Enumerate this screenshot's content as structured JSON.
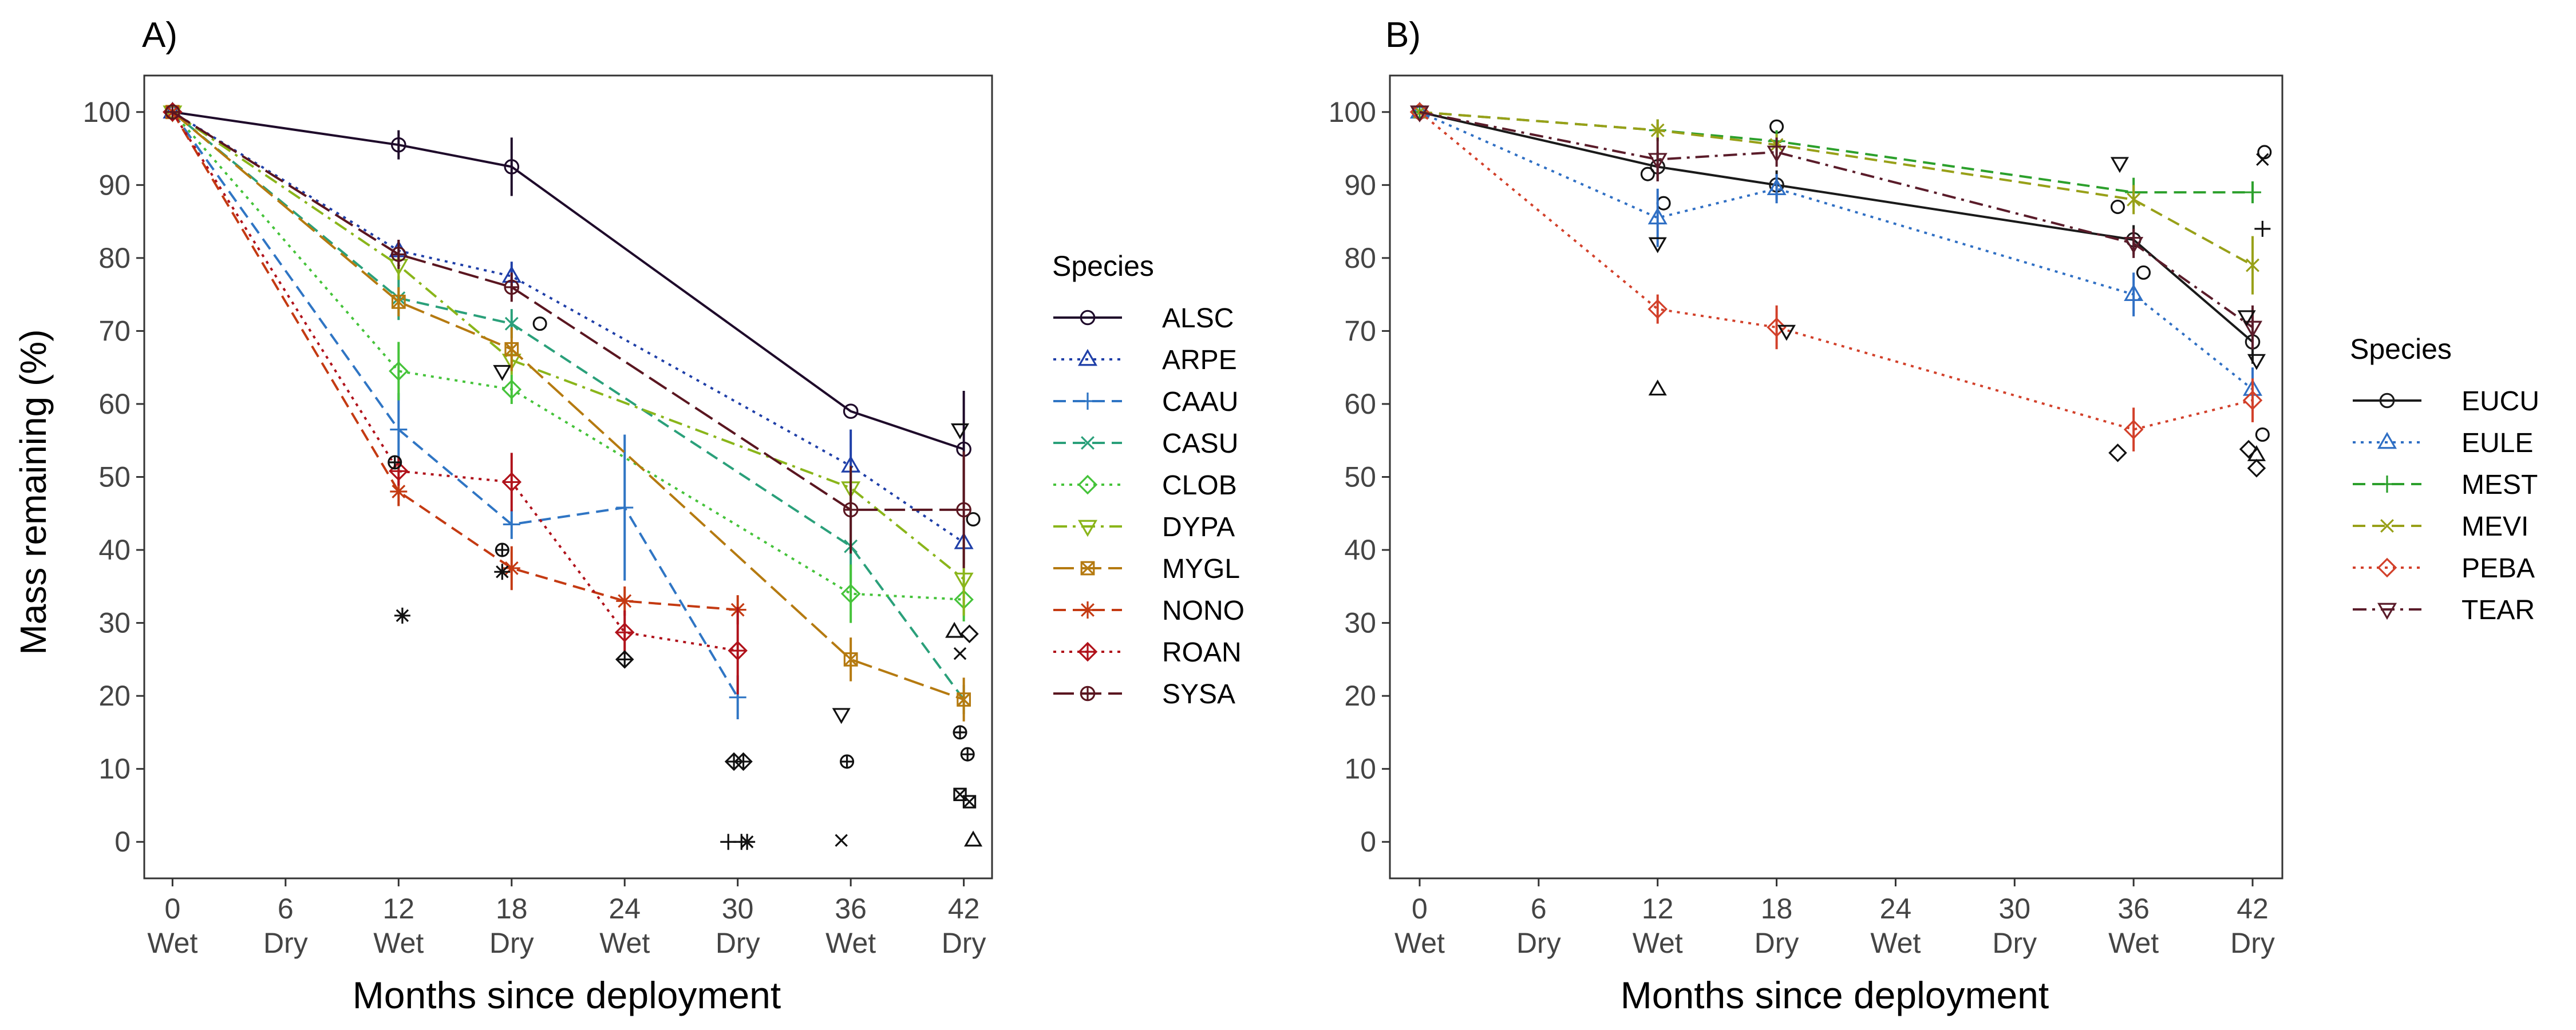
{
  "shared": {
    "ylabel": "Mass remaining (%)",
    "xlabel": "Months since deployment",
    "x_ticks": [
      0,
      6,
      12,
      18,
      24,
      30,
      36,
      42
    ],
    "x_season_labels": [
      "Wet",
      "Dry",
      "Wet",
      "Dry",
      "Wet",
      "Dry",
      "Wet",
      "Dry"
    ],
    "y_ticks": [
      0,
      10,
      20,
      30,
      40,
      50,
      60,
      70,
      80,
      90,
      100
    ],
    "legend_title": "Species"
  },
  "chart_data": [
    {
      "type": "line",
      "panel_label": "A)",
      "xlabel": "Months since deployment",
      "ylabel": "Mass remaining (%)",
      "xlim": [
        -1.5,
        43.5
      ],
      "ylim": [
        -5,
        105
      ],
      "grid": false,
      "legend_title": "Species",
      "legend_position": "right",
      "series": [
        {
          "name": "ALSC",
          "color": "#1e0a2a",
          "marker": "circle",
          "dash": "solid",
          "x": [
            0,
            12,
            18,
            36,
            42
          ],
          "y": [
            100,
            95.5,
            92.5,
            59,
            53.8
          ],
          "err": [
            0,
            2,
            4,
            0,
            8
          ],
          "scatter": [
            [
              19.5,
              71
            ],
            [
              42.5,
              44.2
            ]
          ]
        },
        {
          "name": "ARPE",
          "color": "#1f3fa8",
          "marker": "triangle",
          "dash": "dotted",
          "x": [
            0,
            12,
            18,
            36,
            42
          ],
          "y": [
            100,
            81,
            77.5,
            51.5,
            41
          ],
          "err": [
            0,
            1.5,
            2,
            5,
            3
          ],
          "scatter": [
            [
              41.5,
              28.8
            ],
            [
              42.5,
              0.2
            ]
          ]
        },
        {
          "name": "CAAU",
          "color": "#2f75c4",
          "marker": "plus",
          "dash": "dashed",
          "x": [
            0,
            12,
            18,
            24,
            30
          ],
          "y": [
            100,
            56.5,
            43.5,
            45.8,
            19.8
          ],
          "err": [
            0,
            5,
            2,
            10,
            3
          ],
          "scatter": [
            [
              29.5,
              0
            ],
            [
              30.2,
              0
            ]
          ]
        },
        {
          "name": "CASU",
          "color": "#2aa07a",
          "marker": "x",
          "dash": "dashed",
          "x": [
            0,
            12,
            18,
            36,
            42
          ],
          "y": [
            100,
            74.5,
            71,
            40.5,
            19.5
          ],
          "err": [
            0,
            3,
            2,
            5,
            2
          ],
          "scatter": [
            [
              35.5,
              0.2
            ],
            [
              41.8,
              25.8
            ]
          ]
        },
        {
          "name": "CLOB",
          "color": "#45c33a",
          "marker": "diamond",
          "dash": "dotted",
          "x": [
            0,
            12,
            18,
            36,
            42
          ],
          "y": [
            100,
            64.5,
            62,
            34,
            33.2
          ],
          "err": [
            0,
            4,
            2,
            4,
            3
          ],
          "scatter": [
            [
              42.3,
              28.5
            ]
          ]
        },
        {
          "name": "DYPA",
          "color": "#8ab51a",
          "marker": "triangle-down",
          "dash": "dashdot",
          "x": [
            0,
            12,
            18,
            36,
            42
          ],
          "y": [
            100,
            79,
            66,
            48.5,
            36
          ],
          "err": [
            0,
            2,
            2,
            3,
            5
          ],
          "scatter": [
            [
              17.5,
              64.5
            ],
            [
              35.5,
              17.5
            ],
            [
              41.8,
              56.5
            ]
          ]
        },
        {
          "name": "MYGL",
          "color": "#b57a10",
          "marker": "boxed-x",
          "dash": "longdash",
          "x": [
            0,
            12,
            18,
            36,
            42
          ],
          "y": [
            100,
            74,
            67.5,
            25,
            19.5
          ],
          "err": [
            0,
            2,
            3,
            3,
            3
          ],
          "scatter": [
            [
              41.8,
              6.5
            ],
            [
              42.3,
              5.5
            ]
          ]
        },
        {
          "name": "NONO",
          "color": "#c43a12",
          "marker": "asterisk",
          "dash": "dashed",
          "x": [
            0,
            12,
            18,
            24,
            30
          ],
          "y": [
            100,
            48,
            37.5,
            33,
            31.8
          ],
          "err": [
            0,
            2,
            3,
            2,
            2
          ],
          "scatter": [
            [
              12.2,
              31
            ],
            [
              17.5,
              37
            ],
            [
              30.5,
              0
            ]
          ]
        },
        {
          "name": "ROAN",
          "color": "#b0121b",
          "marker": "boxed-diamond",
          "dash": "dotted",
          "x": [
            0,
            12,
            18,
            24,
            30
          ],
          "y": [
            100,
            50.8,
            49.3,
            28.7,
            26.2
          ],
          "err": [
            0,
            2,
            4,
            3,
            6
          ],
          "scatter": [
            [
              24,
              25
            ],
            [
              29.8,
              11
            ],
            [
              30.3,
              11
            ]
          ]
        },
        {
          "name": "SYSA",
          "color": "#5a1620",
          "marker": "boxed-circle",
          "dash": "longdash",
          "x": [
            0,
            12,
            18,
            36,
            42
          ],
          "y": [
            100,
            80.5,
            76,
            45.5,
            45.5
          ],
          "err": [
            0,
            2,
            2,
            6,
            8
          ],
          "scatter": [
            [
              11.8,
              52
            ],
            [
              17.5,
              40
            ],
            [
              35.8,
              11
            ],
            [
              41.8,
              15
            ],
            [
              42.2,
              12
            ]
          ]
        }
      ]
    },
    {
      "type": "line",
      "panel_label": "B)",
      "xlabel": "Months since deployment",
      "ylabel": "",
      "xlim": [
        -1.5,
        43.5
      ],
      "ylim": [
        -5,
        105
      ],
      "grid": false,
      "legend_title": "Species",
      "legend_position": "right",
      "series": [
        {
          "name": "EUCU",
          "color": "#1a1a1a",
          "marker": "circle",
          "dash": "solid",
          "x": [
            0,
            12,
            18,
            36,
            42
          ],
          "y": [
            100,
            92.5,
            90,
            82.5,
            68.5
          ],
          "err": [
            0,
            2,
            2,
            2,
            3
          ],
          "scatter": [
            [
              11.5,
              91.5
            ],
            [
              12.3,
              87.5
            ],
            [
              18,
              98
            ],
            [
              35.2,
              87
            ],
            [
              36.5,
              78
            ],
            [
              42.6,
              94.5
            ],
            [
              42.5,
              55.8
            ]
          ]
        },
        {
          "name": "EULE",
          "color": "#2f6fc4",
          "marker": "triangle",
          "dash": "dotted",
          "x": [
            0,
            12,
            18,
            36,
            42
          ],
          "y": [
            100,
            85.5,
            89.5,
            75,
            62
          ],
          "err": [
            0,
            4,
            2,
            3,
            3
          ],
          "scatter": [
            [
              12,
              62
            ],
            [
              42.2,
              53
            ]
          ]
        },
        {
          "name": "MEST",
          "color": "#2ca02c",
          "marker": "plus",
          "dash": "dashed",
          "x": [
            0,
            12,
            18,
            36,
            42
          ],
          "y": [
            100,
            97.5,
            96,
            89,
            89
          ],
          "err": [
            0,
            1.5,
            1.5,
            2,
            1.5
          ],
          "scatter": [
            [
              42.5,
              84
            ]
          ]
        },
        {
          "name": "MEVI",
          "color": "#98a018",
          "marker": "x",
          "dash": "dashed",
          "x": [
            0,
            12,
            18,
            36,
            42
          ],
          "y": [
            100,
            97.5,
            95.5,
            88,
            79
          ],
          "err": [
            0,
            1.5,
            1.5,
            2,
            4
          ],
          "scatter": [
            [
              42.5,
              93.5
            ]
          ]
        },
        {
          "name": "PEBA",
          "color": "#d2402a",
          "marker": "diamond",
          "dash": "dotted",
          "x": [
            0,
            12,
            18,
            36,
            42
          ],
          "y": [
            100,
            73,
            70.5,
            56.5,
            60.5
          ],
          "err": [
            0,
            2,
            3,
            3,
            3
          ],
          "scatter": [
            [
              35.2,
              53.3
            ],
            [
              41.8,
              53.8
            ],
            [
              42.2,
              51.2
            ]
          ]
        },
        {
          "name": "TEAR",
          "color": "#5a1c2a",
          "marker": "triangle-down",
          "dash": "dashdot",
          "x": [
            0,
            12,
            18,
            36,
            42
          ],
          "y": [
            100,
            93.5,
            94.5,
            82,
            70.5
          ],
          "err": [
            0,
            3,
            2,
            2,
            3
          ],
          "scatter": [
            [
              12,
              82
            ],
            [
              18.5,
              70
            ],
            [
              35.3,
              93
            ],
            [
              41.7,
              72
            ],
            [
              42.2,
              66
            ]
          ]
        }
      ]
    }
  ]
}
